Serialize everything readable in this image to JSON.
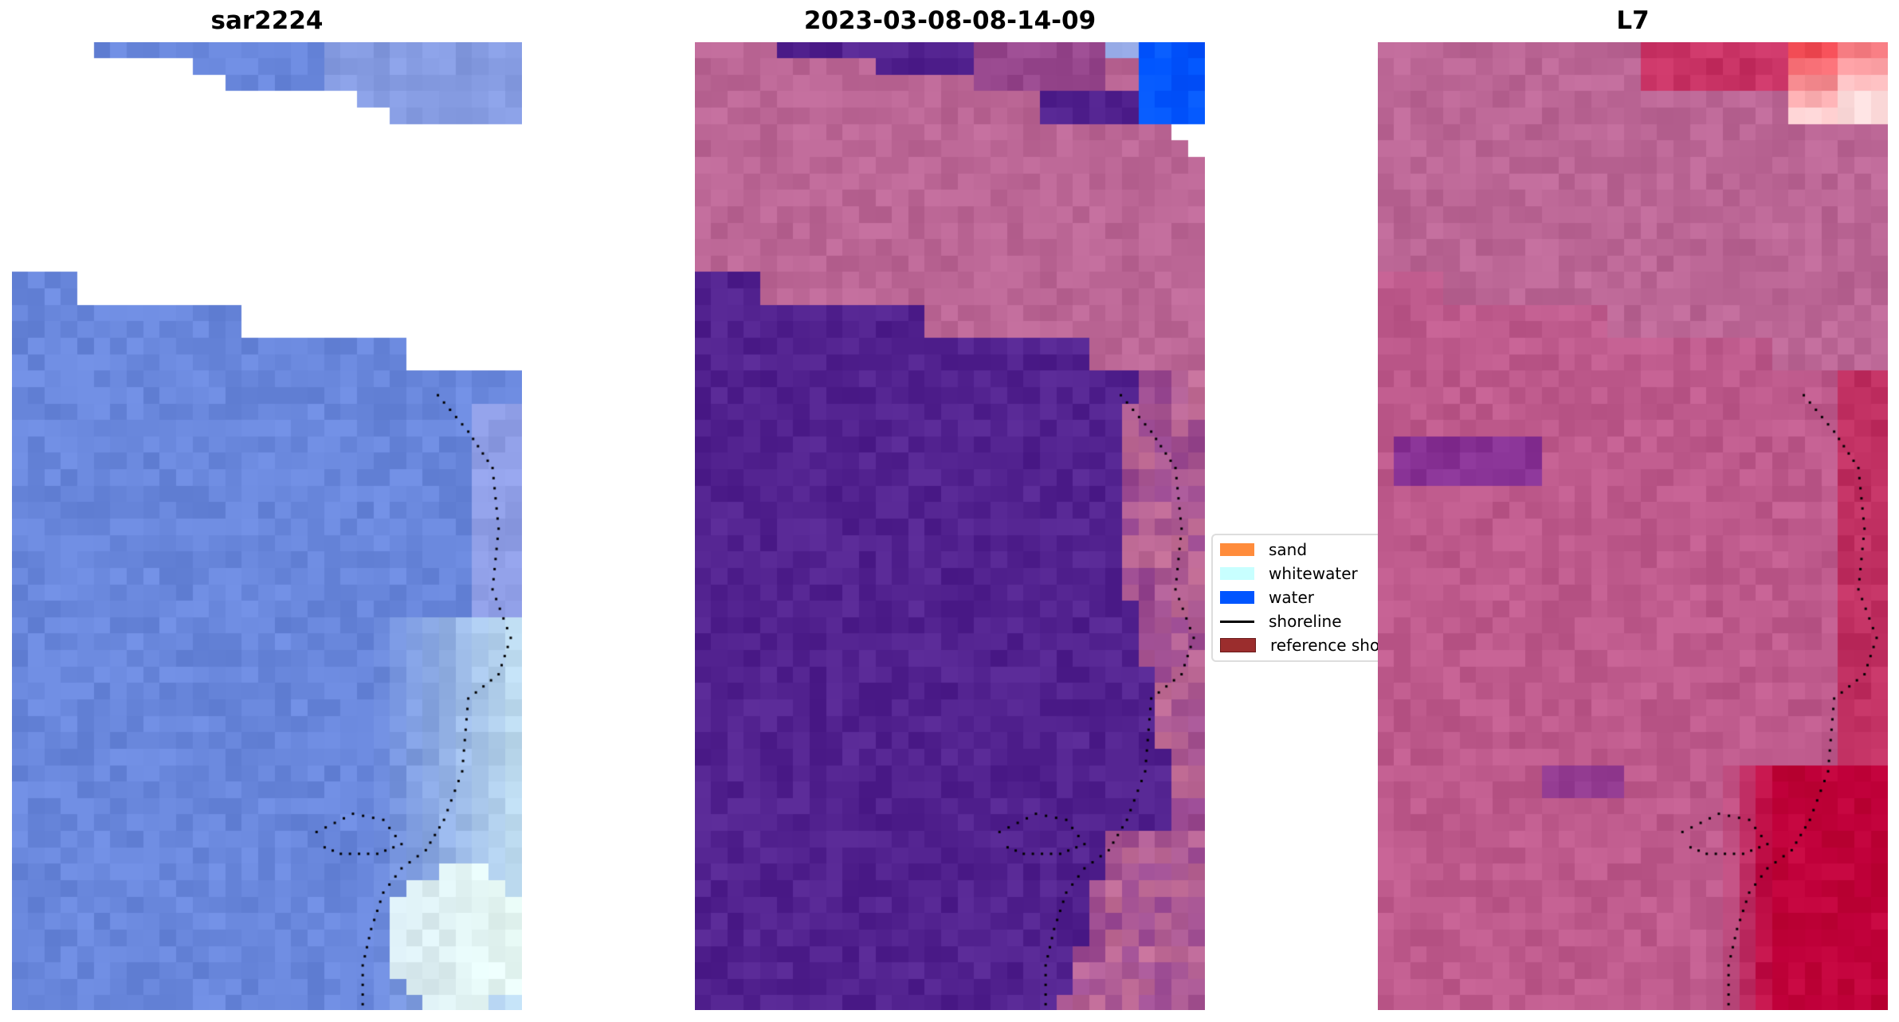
{
  "chart_data": [
    {
      "type": "heatmap",
      "title": "sar2224",
      "axes": "off"
    },
    {
      "type": "heatmap",
      "title": "2023-03-08-08-14-09",
      "axes": "off"
    },
    {
      "type": "heatmap",
      "title": "L7",
      "axes": "off"
    }
  ],
  "legend": {
    "placement": "center-right",
    "items": [
      {
        "label": "sand",
        "color": "#ff8c3c",
        "kind": "patch"
      },
      {
        "label": "whitewater",
        "color": "#c8ffff",
        "kind": "patch"
      },
      {
        "label": "water",
        "color": "#0055ff",
        "kind": "patch"
      },
      {
        "label": "shoreline",
        "color": "#000000",
        "kind": "line"
      },
      {
        "label": "reference sho",
        "color": "#9b2d2d",
        "kind": "patch"
      }
    ]
  }
}
